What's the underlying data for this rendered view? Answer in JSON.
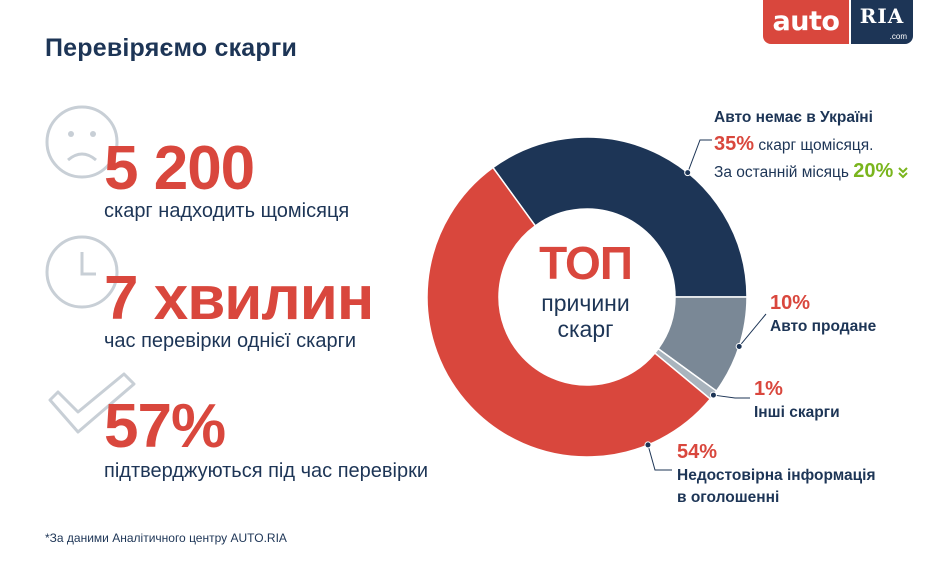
{
  "logo": {
    "auto": "auto",
    "ria": "RIA",
    "com": ".com"
  },
  "page_title": "Перевіряємо скарги",
  "stats": [
    {
      "icon": "sad-face-icon",
      "value": "5 200",
      "description": "скарг надходить щомісяця"
    },
    {
      "icon": "clock-icon",
      "value": "7 хвилин",
      "description": "час перевірки однієї скарги"
    },
    {
      "icon": "checkmark-icon",
      "value": "57%",
      "description": "підтверджуються під час перевірки"
    }
  ],
  "footnote": "*За даними Аналітичного центру AUTO.RIA",
  "colors": {
    "red": "#d9473d",
    "navy": "#1d3556",
    "gray": "#7a8896",
    "light_gray": "#a9b4bd",
    "green": "#7ab51d"
  },
  "chart_data": {
    "type": "pie",
    "center_title": "ТОП",
    "center_subtitle_1": "причини",
    "center_subtitle_2": "скарг",
    "slices": [
      {
        "label": "Авто немає в Україні",
        "value": 35,
        "color": "#1d3556"
      },
      {
        "label": "Авто продане",
        "value": 10,
        "color": "#7a8896"
      },
      {
        "label": "Інші скарги",
        "value": 1,
        "color": "#a9b4bd"
      },
      {
        "label": "Недостовірна інформація в оголошенні",
        "value": 54,
        "color": "#d9473d"
      }
    ],
    "annotations": {
      "a1_label": "Авто немає в Україні",
      "a1_pct": "35%",
      "a1_sub": " скарг щомісяця.",
      "a1_change_label": "За останній місяць ",
      "a1_change_value": "20%",
      "a2_pct": "10%",
      "a2_label": "Авто продане",
      "a3_pct": "1%",
      "a3_label": "Інші скарги",
      "a4_pct": "54%",
      "a4_label_1": "Недостовірна інформація",
      "a4_label_2": "в оголошенні"
    }
  }
}
